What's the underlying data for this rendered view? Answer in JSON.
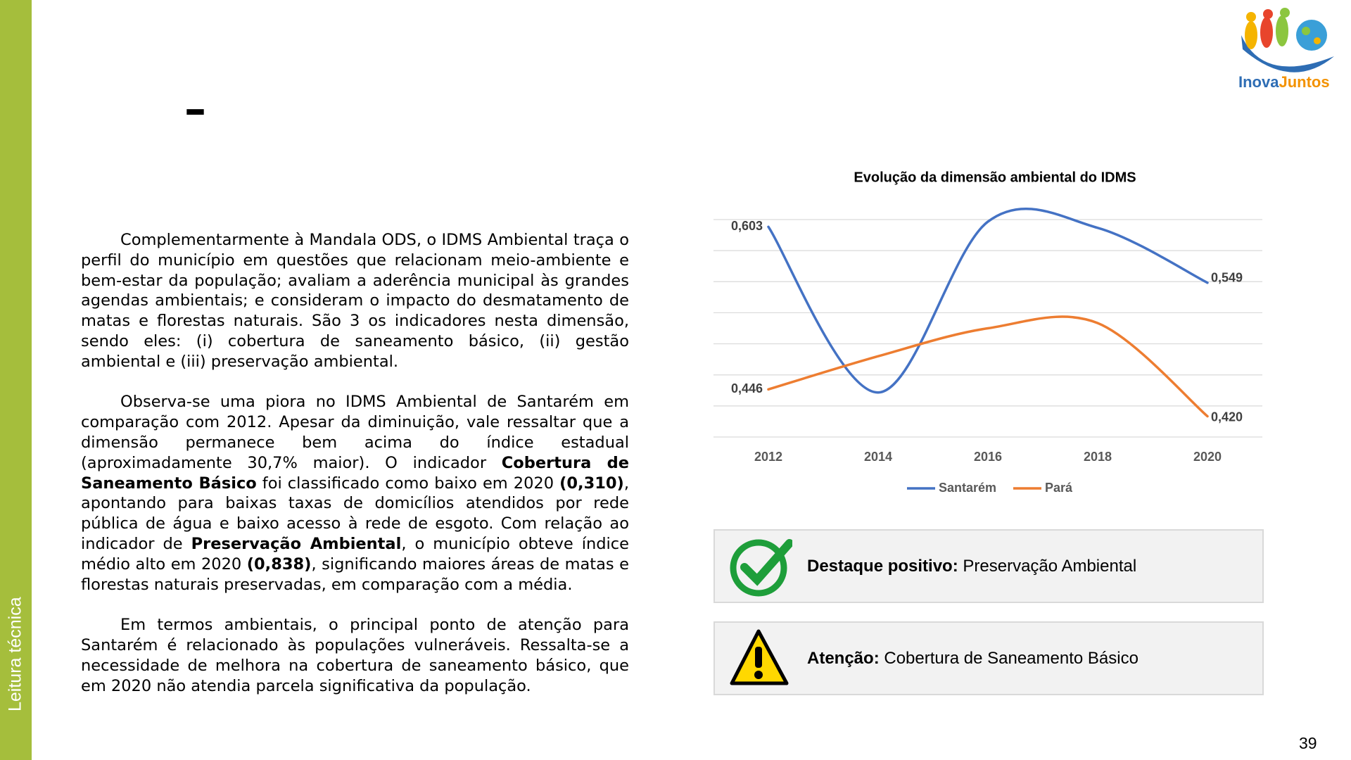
{
  "sidebar_label": "Leitura técnica",
  "logo": {
    "first": "Inova",
    "second": "Juntos"
  },
  "heading": "–",
  "body": {
    "paragraphs": [
      [
        "Complementarmente à Mandala ODS, o IDMS Ambiental traça o perfil do município em questões que relacionam meio-ambiente e bem-estar da população; avaliam a aderência municipal às grandes agendas ambientais; e consideram o impacto do desmatamento de matas e florestas naturais. São 3 os indicadores nesta dimensão, sendo eles: (i) cobertura de saneamento básico, (ii) gestão ambiental e (iii) preservação ambiental."
      ],
      [
        "Observa-se uma piora no IDMS Ambiental de Santarém em comparação com 2012. Apesar da diminuição, vale ressaltar que a dimensão permanece bem acima do índice estadual (aproximadamente 30,7% maior). O indicador ",
        {
          "text": "Cobertura de Saneamento Básico",
          "bold": true
        },
        " foi classificado como baixo em 2020 ",
        {
          "text": "(0,310)",
          "bold": true
        },
        ", apontando para baixas taxas de domicílios atendidos por rede pública de água e baixo acesso à rede de esgoto. Com relação ao indicador de ",
        {
          "text": "Preservação Ambiental",
          "bold": true
        },
        ", o município obteve índice médio alto em 2020 ",
        {
          "text": "(0,838)",
          "bold": true
        },
        ", significando maiores áreas de matas e florestas naturais preservadas, em comparação com a média."
      ],
      [
        "Em termos ambientais, o principal ponto de atenção para Santarém é relacionado às populações vulneráveis. Ressalta-se a necessidade de melhora na cobertura de saneamento básico, que em 2020 não atendia parcela significativa da população."
      ]
    ]
  },
  "chart_data": {
    "type": "line",
    "title": "Evolução da dimensão ambiental do IDMS",
    "categories": [
      "2012",
      "2014",
      "2016",
      "2018",
      "2020"
    ],
    "series": [
      {
        "name": "Santarém",
        "color": "#4472c4",
        "values": [
          0.603,
          0.443,
          0.608,
          0.602,
          0.549
        ],
        "value_labels": [
          "0,603",
          null,
          null,
          null,
          "0,549"
        ]
      },
      {
        "name": "Pará",
        "color": "#ed7d31",
        "values": [
          0.446,
          0.478,
          0.505,
          0.51,
          0.42
        ],
        "value_labels": [
          "0,446",
          null,
          null,
          null,
          "0,420"
        ]
      }
    ],
    "ylim": [
      0.4,
      0.61
    ],
    "yticks": [
      0.4,
      0.43,
      0.46,
      0.49,
      0.52,
      0.55,
      0.58,
      0.61
    ],
    "grid": true,
    "smooth": true,
    "legend": "bottom"
  },
  "highlights": [
    {
      "label": "Destaque positivo:",
      "text": "Preservação Ambiental"
    },
    {
      "label": "Atenção:",
      "text": "Cobertura de Saneamento Básico"
    }
  ],
  "page_number": 39
}
